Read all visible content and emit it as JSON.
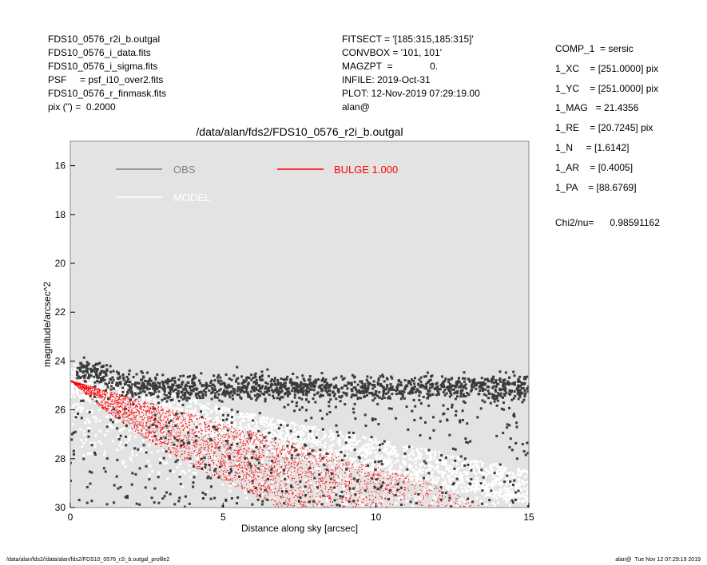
{
  "header": {
    "left_lines": [
      "FDS10_0576_r2i_b.outgal",
      "FDS10_0576_i_data.fits",
      "FDS10_0576_i_sigma.fits",
      "PSF     = psf_i10_over2.fits",
      "FDS10_0576_r_finmask.fits",
      "pix (\") =  0.2000"
    ],
    "mid_lines": [
      "FITSECT = '[185:315,185:315]'",
      "CONVBOX = '101, 101'",
      "MAGZPT  =              0.",
      "INFILE: 2019-Oct-31",
      "PLOT: 12-Nov-2019 07:29:19.00",
      "alan@"
    ],
    "params": [
      "COMP_1  = sersic",
      "1_XC    = [251.0000] pix",
      "1_YC    = [251.0000] pix",
      "1_MAG   = 21.4356",
      "1_RE    = [20.7245] pix",
      "1_N     = [1.6142]",
      "1_AR    = [0.4005]",
      "1_PA    = [88.6769]"
    ],
    "chi2": "Chi2/nu=      0.98591162"
  },
  "footer": {
    "left": "/data/alan/fds2//data/alan/fds2/FDS10_0576_r2i_b.outgal_profile2",
    "right": "alan@  Tue Nov 12 07:29:19 2019"
  },
  "colors": {
    "plot_background": "#e3e3e3",
    "obs_points": "#3a3a3a",
    "model_points": "#ffffff",
    "bulge_points": "#ff0000",
    "obs_legend": "#808080"
  },
  "chart_data": {
    "type": "scatter",
    "title": "/data/alan/fds2/FDS10_0576_r2i_b.outgal",
    "xlabel": "Distance along sky [arcsec]",
    "ylabel": "magnitude/arcsec^2",
    "xlim": [
      0,
      15
    ],
    "ylim": [
      30,
      15
    ],
    "x_ticks": [
      "0",
      "5",
      "10",
      "15"
    ],
    "y_ticks": [
      "16",
      "18",
      "20",
      "22",
      "24",
      "26",
      "28",
      "30"
    ],
    "grid": false,
    "legend": [
      {
        "label": "OBS",
        "color": "#808080"
      },
      {
        "label": "MODEL",
        "color": "#ffffff"
      },
      {
        "label": "BULGE  1.000",
        "color": "#ff0000"
      }
    ],
    "series": [
      {
        "name": "OBS",
        "description_points": "mean surface brightness ~25.0 mag/arcsec^2 with scatter reaching 30 at all radii",
        "x": [
          0.3,
          0.5,
          0.8,
          1,
          2,
          3,
          4,
          5,
          6,
          7,
          8,
          9,
          10,
          11,
          12,
          13,
          14,
          15
        ],
        "y": [
          24.5,
          24.3,
          24.4,
          24.6,
          25.0,
          25.1,
          25.1,
          25.1,
          25.1,
          25.1,
          25.1,
          25.1,
          25.1,
          25.1,
          25.1,
          25.1,
          25.1,
          25.1
        ]
      },
      {
        "name": "MODEL",
        "x": [
          0,
          1,
          2,
          3,
          4,
          5,
          6,
          8,
          10,
          12,
          15
        ],
        "y": [
          24.8,
          25.1,
          25.5,
          25.9,
          26.2,
          26.6,
          26.9,
          27.4,
          27.9,
          28.4,
          29.2
        ]
      },
      {
        "name": "BULGE  1.000",
        "x_minor_axis": [
          0,
          1,
          2,
          3,
          4,
          5,
          6,
          6.8
        ],
        "y_minor_axis": [
          24.8,
          25.9,
          26.8,
          27.6,
          28.3,
          28.9,
          29.5,
          30.0
        ],
        "x_major_axis": [
          0,
          2,
          4,
          6,
          8,
          10,
          12,
          13.5
        ],
        "y_major_axis": [
          24.8,
          25.5,
          26.2,
          26.9,
          27.6,
          28.3,
          29.1,
          30.0
        ]
      }
    ]
  }
}
